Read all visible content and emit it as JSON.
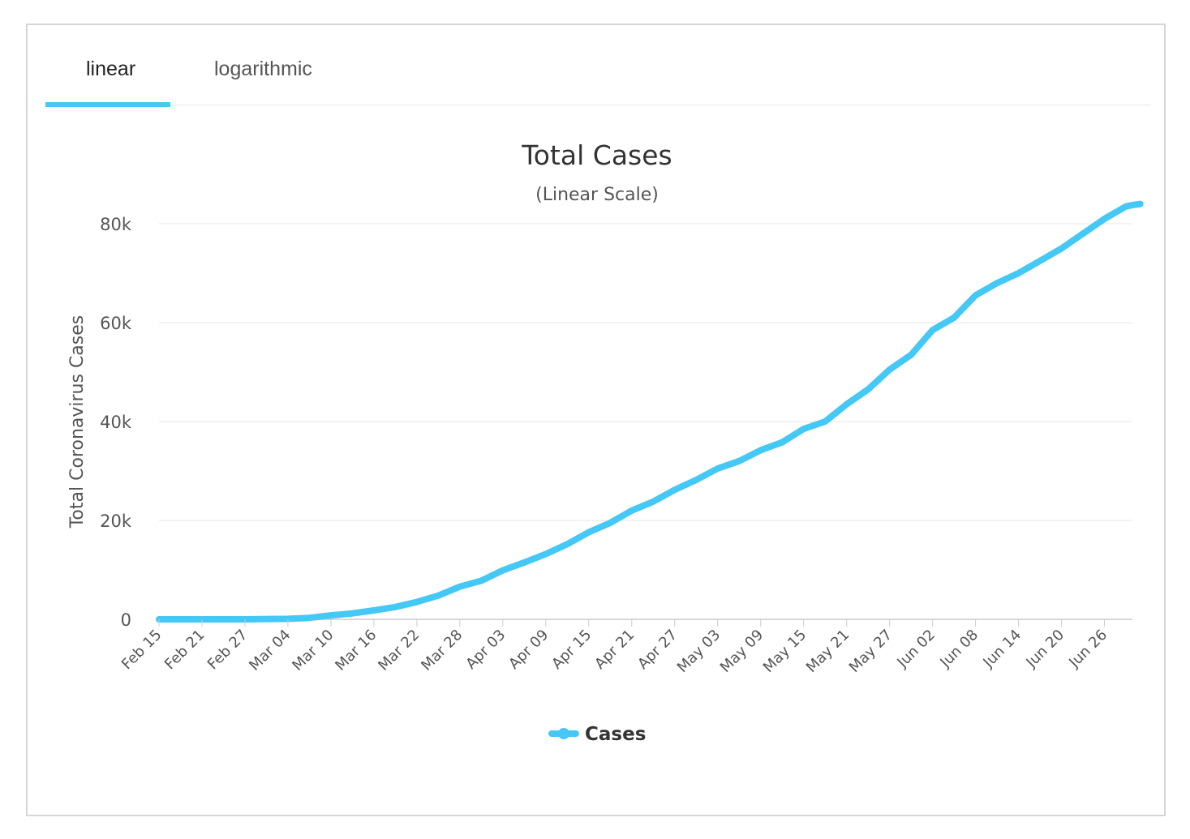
{
  "tabs": [
    {
      "label": "linear",
      "active": true
    },
    {
      "label": "logarithmic",
      "active": false
    }
  ],
  "colors": {
    "accent": "#4ac7ec",
    "series": "#44c8f5",
    "grid": "#e6e6e6",
    "axis": "#cccccc"
  },
  "chart_data": {
    "type": "line",
    "title": "Total Cases",
    "subtitle": "(Linear Scale)",
    "ylabel": "Total Coronavirus Cases",
    "xlabel": "",
    "ylim": [
      0,
      80000
    ],
    "yticks": [
      0,
      20000,
      40000,
      60000,
      80000
    ],
    "ytick_labels": [
      "0",
      "20k",
      "40k",
      "60k",
      "80k"
    ],
    "xtick_labels": [
      "Feb 15",
      "Feb 21",
      "Feb 27",
      "Mar 04",
      "Mar 10",
      "Mar 16",
      "Mar 22",
      "Mar 28",
      "Apr 03",
      "Apr 09",
      "Apr 15",
      "Apr 21",
      "Apr 27",
      "May 03",
      "May 09",
      "May 15",
      "May 21",
      "May 27",
      "Jun 02",
      "Jun 08",
      "Jun 14",
      "Jun 20",
      "Jun 26"
    ],
    "x_start": "Feb 15",
    "x_days": [
      0,
      6,
      12,
      18,
      21,
      24,
      27,
      30,
      33,
      36,
      39,
      42,
      45,
      48,
      51,
      54,
      57,
      60,
      63,
      66,
      69,
      72,
      75,
      78,
      81,
      84,
      87,
      90,
      93,
      96,
      99,
      102,
      105,
      108,
      111,
      114,
      117,
      120,
      123,
      126,
      129,
      132,
      135,
      136,
      137
    ],
    "series": [
      {
        "name": "Cases",
        "values": [
          0,
          0,
          0,
          100,
          300,
          800,
          1200,
          1800,
          2500,
          3500,
          4800,
          6600,
          7800,
          9900,
          11500,
          13200,
          15200,
          17600,
          19500,
          22000,
          23800,
          26200,
          28200,
          30500,
          32000,
          34200,
          35800,
          38500,
          40000,
          43500,
          46500,
          50500,
          53500,
          58500,
          61000,
          65500,
          68000,
          70000,
          72500,
          75000,
          78000,
          81000,
          83500,
          83800,
          84000
        ]
      }
    ],
    "legend": [
      "Cases"
    ],
    "legend_position": "bottom-center",
    "grid": true
  }
}
